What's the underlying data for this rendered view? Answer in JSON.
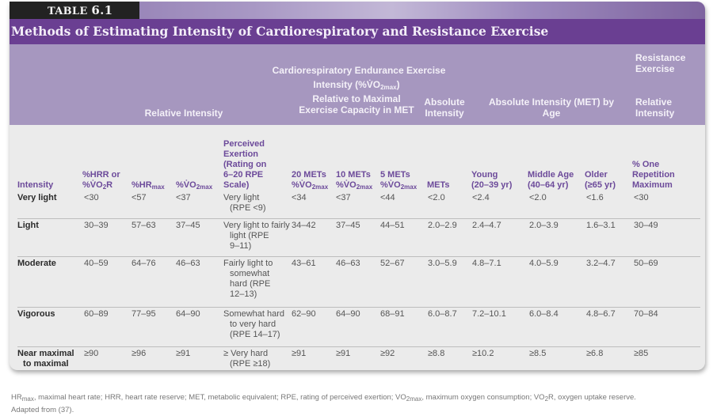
{
  "table_label": {
    "prefix": "TABLE",
    "number": "6.1"
  },
  "title": "Methods of Estimating Intensity of Cardiorespiratory and Resistance Exercise",
  "group_headers": {
    "cardio": "Cardiorespiratory Endurance Exercise",
    "resistance_l1": "Resistance",
    "resistance_l2": "Exercise",
    "relative_intensity": "Relative Intensity",
    "vo2_l1_a": "Intensity (%V̇O",
    "vo2_l1_sub": "2max",
    "vo2_l1_b": ")",
    "vo2_l2": "Relative to Maximal",
    "vo2_l3": "Exercise Capacity in MET",
    "absolute_l1": "Absolute",
    "absolute_l2": "Intensity",
    "age_l1": "Absolute Intensity (MET) by",
    "age_l2": "Age",
    "res_rel_l1": "Relative",
    "res_rel_l2": "Intensity"
  },
  "columns": {
    "intensity": "Intensity",
    "hrr_l1": "%HRR or",
    "hrr_l2": "%V̇O",
    "hrr_sub": "2",
    "hrr_l2b": "R",
    "hrmax": "%HR",
    "hrmax_sub": "max",
    "vo2max": "%V̇O",
    "vo2max_sub": "2max",
    "rpe_l1": "Perceived",
    "rpe_l2": "Exertion",
    "rpe_l3": "(Rating on",
    "rpe_l4": "6–20 RPE",
    "rpe_l5": "Scale)",
    "m20_l1": "20 METs",
    "m10_l1": "10 METs",
    "m5_l1": "5 METs",
    "m_l2": "%V̇O",
    "m_sub": "2max",
    "mets": "METs",
    "young_l1": "Young",
    "young_l2": "(20–39 yr)",
    "middle_l1": "Middle Age",
    "middle_l2": "(40–64 yr)",
    "older_l1": "Older",
    "older_l2": "(≥65 yr)",
    "orm_l1": "% One",
    "orm_l2": "Repetition",
    "orm_l3": "Maximum"
  },
  "rows": [
    {
      "intensity": [
        "Very light"
      ],
      "hrr": "<30",
      "hrmax": "<57",
      "vo2max": "<37",
      "rpe": [
        "Very light",
        "(RPE <9)"
      ],
      "m20": "<34",
      "m10": "<37",
      "m5": "<44",
      "mets": "<2.0",
      "young": "<2.4",
      "middle": "<2.0",
      "older": "<1.6",
      "orm": "<30"
    },
    {
      "intensity": [
        "Light"
      ],
      "hrr": "30–39",
      "hrmax": "57–63",
      "vo2max": "37–45",
      "rpe": [
        "Very light to fairly",
        "light (RPE",
        "9–11)"
      ],
      "m20": "34–42",
      "m10": "37–45",
      "m5": "44–51",
      "mets": "2.0–2.9",
      "young": "2.4–4.7",
      "middle": "2.0–3.9",
      "older": "1.6–3.1",
      "orm": "30–49"
    },
    {
      "intensity": [
        "Moderate"
      ],
      "hrr": "40–59",
      "hrmax": "64–76",
      "vo2max": "46–63",
      "rpe": [
        "Fairly light to",
        "somewhat",
        "hard (RPE",
        "12–13)"
      ],
      "m20": "43–61",
      "m10": "46–63",
      "m5": "52–67",
      "mets": "3.0–5.9",
      "young": "4.8–7.1",
      "middle": "4.0–5.9",
      "older": "3.2–4.7",
      "orm": "50–69"
    },
    {
      "intensity": [
        "Vigorous"
      ],
      "hrr": "60–89",
      "hrmax": "77–95",
      "vo2max": "64–90",
      "rpe": [
        "Somewhat hard",
        "to very hard",
        "(RPE 14–17)"
      ],
      "m20": "62–90",
      "m10": "64–90",
      "m5": "68–91",
      "mets": "6.0–8.7",
      "young": "7.2–10.1",
      "middle": "6.0–8.4",
      "older": "4.8–6.7",
      "orm": "70–84"
    },
    {
      "intensity": [
        "Near maximal",
        "to maximal"
      ],
      "hrr": "≥90",
      "hrmax": "≥96",
      "vo2max": "≥91",
      "rpe": [
        "≥ Very hard",
        "(RPE ≥18)"
      ],
      "m20": "≥91",
      "m10": "≥91",
      "m5": "≥92",
      "mets": "≥8.8",
      "young": "≥10.2",
      "middle": "≥8.5",
      "older": "≥6.8",
      "orm": "≥85"
    }
  ],
  "footnote": {
    "line1_a": "HR",
    "line1_sub": "max",
    "line1_b": ", maximal heart rate; HRR, heart rate reserve; MET, metabolic equivalent; RPE, rating of perceived exertion; VO",
    "line1_sub2": "2max",
    "line1_c": ", maximum oxygen consumption; VO",
    "line1_sub3": "2",
    "line1_d": "R, oxygen uptake reserve.",
    "line2": "Adapted from (37)."
  },
  "colors": {
    "title_bar": "#6a3f92",
    "header_band": "#a697bf",
    "column_header_text": "#6c4a9a",
    "table_label_bg": "#222222"
  }
}
